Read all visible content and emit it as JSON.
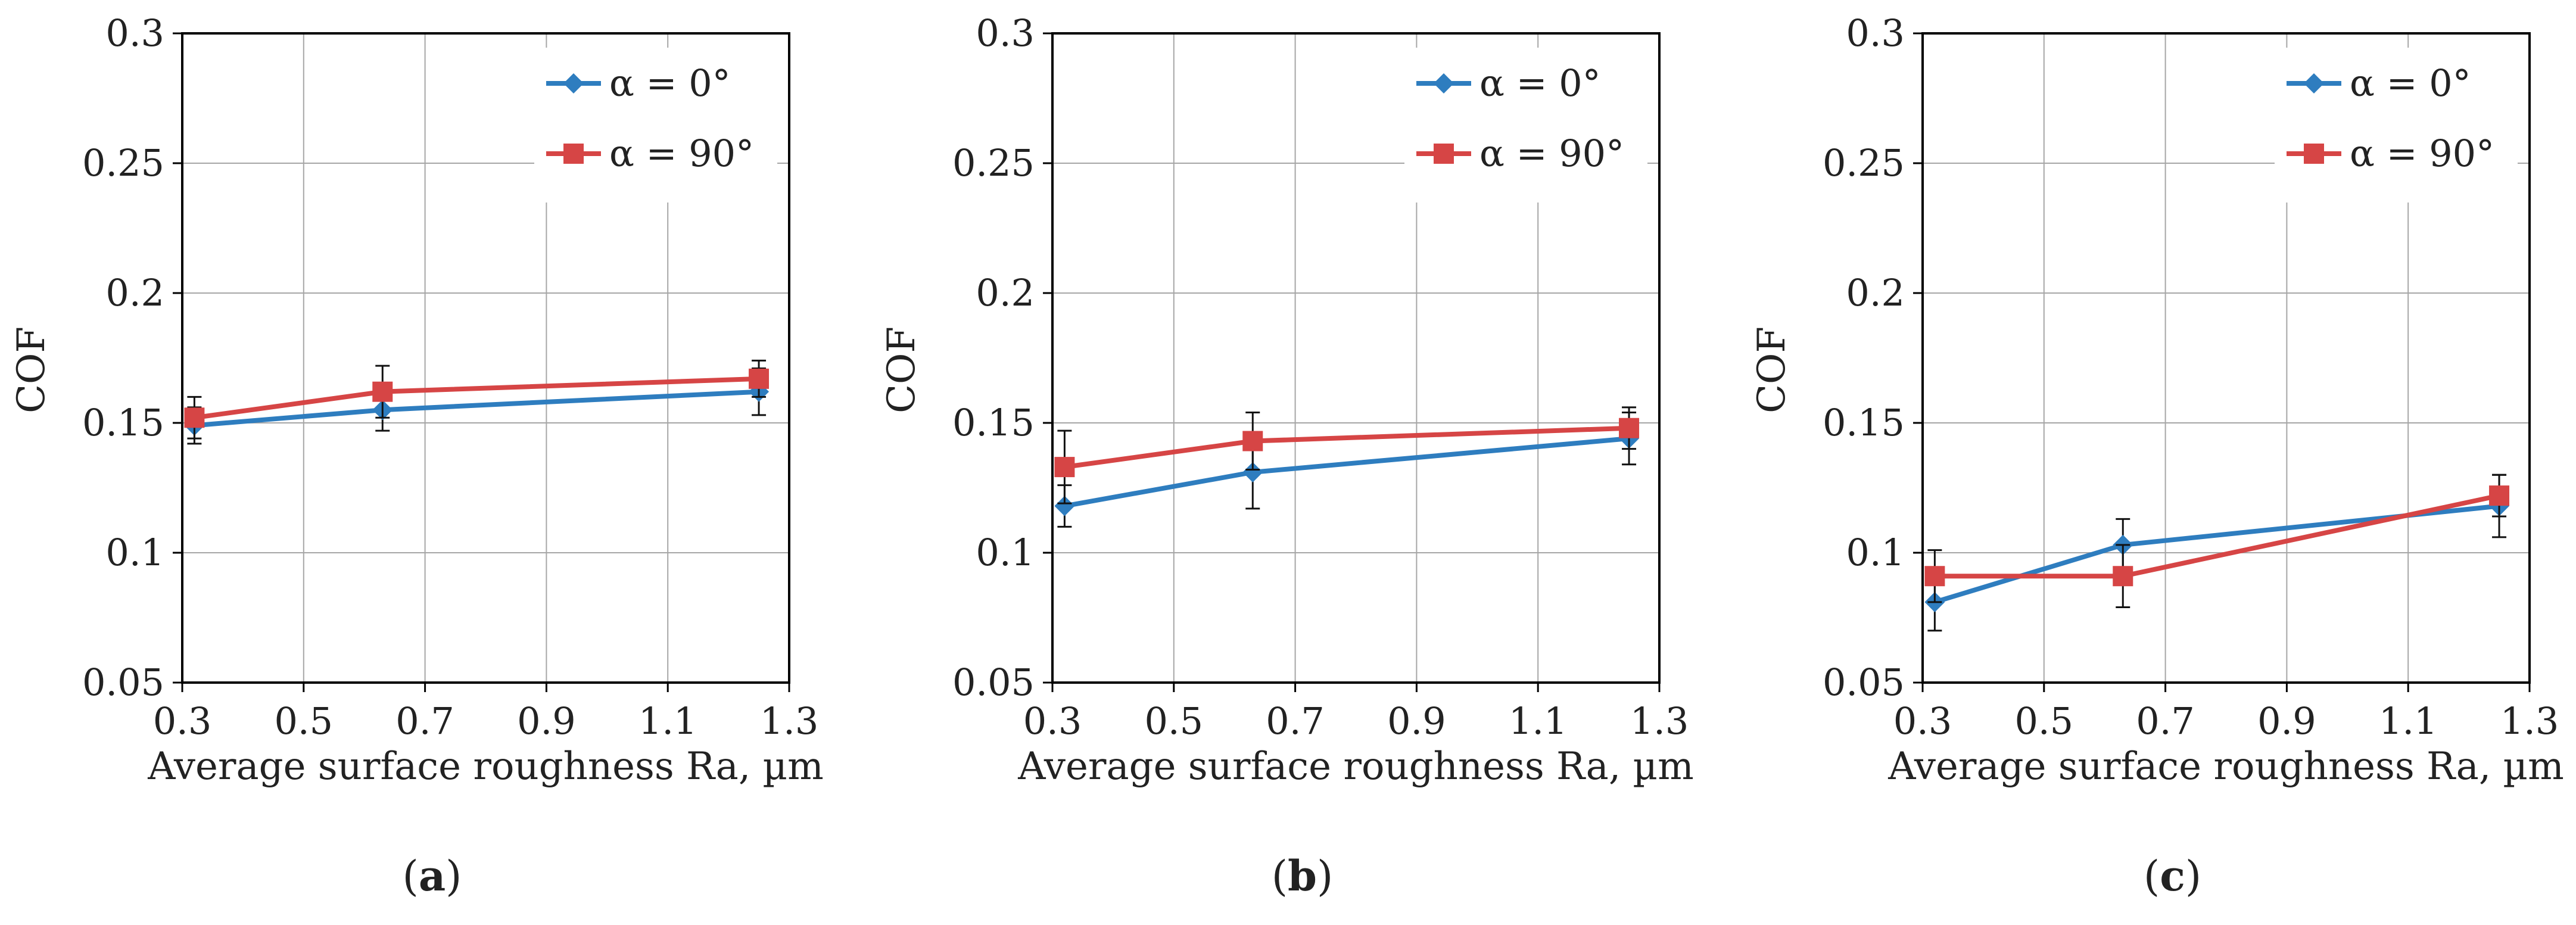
{
  "figure": {
    "panels": [
      "a",
      "b",
      "c"
    ]
  },
  "colors": {
    "series_alpha0": "#2e7dbf",
    "series_alpha90": "#d64545",
    "grid": "#a6a6a6",
    "axis": "#000000"
  },
  "chart_data": [
    {
      "type": "line",
      "panel_label": "a",
      "xlabel": "Average surface roughness Ra, µm",
      "ylabel": "COF",
      "xlim": [
        0.3,
        1.3
      ],
      "ylim": [
        0.05,
        0.3
      ],
      "xticks": [
        "0.3",
        "0.5",
        "0.7",
        "0.9",
        "1.1",
        "1.3"
      ],
      "yticks": [
        "0.05",
        "0.1",
        "0.15",
        "0.2",
        "0.25",
        "0.3"
      ],
      "grid": true,
      "legend_position": "top-right",
      "series": [
        {
          "name": "α = 0°",
          "marker": "diamond",
          "x": [
            0.32,
            0.63,
            1.25
          ],
          "y": [
            0.149,
            0.155,
            0.162
          ],
          "err": [
            0.007,
            0.008,
            0.009
          ]
        },
        {
          "name": "α = 90°",
          "marker": "square",
          "x": [
            0.32,
            0.63,
            1.25
          ],
          "y": [
            0.152,
            0.162,
            0.167
          ],
          "err": [
            0.008,
            0.01,
            0.007
          ]
        }
      ]
    },
    {
      "type": "line",
      "panel_label": "b",
      "xlabel": "Average surface roughness Ra, µm",
      "ylabel": "COF",
      "xlim": [
        0.3,
        1.3
      ],
      "ylim": [
        0.05,
        0.3
      ],
      "xticks": [
        "0.3",
        "0.5",
        "0.7",
        "0.9",
        "1.1",
        "1.3"
      ],
      "yticks": [
        "0.05",
        "0.1",
        "0.15",
        "0.2",
        "0.25",
        "0.3"
      ],
      "grid": true,
      "legend_position": "top-right",
      "series": [
        {
          "name": "α = 0°",
          "marker": "diamond",
          "x": [
            0.32,
            0.63,
            1.25
          ],
          "y": [
            0.118,
            0.131,
            0.144
          ],
          "err": [
            0.008,
            0.014,
            0.01
          ]
        },
        {
          "name": "α = 90°",
          "marker": "square",
          "x": [
            0.32,
            0.63,
            1.25
          ],
          "y": [
            0.133,
            0.143,
            0.148
          ],
          "err": [
            0.014,
            0.011,
            0.008
          ]
        }
      ]
    },
    {
      "type": "line",
      "panel_label": "c",
      "xlabel": "Average surface roughness Ra, µm",
      "ylabel": "COF",
      "xlim": [
        0.3,
        1.3
      ],
      "ylim": [
        0.05,
        0.3
      ],
      "xticks": [
        "0.3",
        "0.5",
        "0.7",
        "0.9",
        "1.1",
        "1.3"
      ],
      "yticks": [
        "0.05",
        "0.1",
        "0.15",
        "0.2",
        "0.25",
        "0.3"
      ],
      "grid": true,
      "legend_position": "top-right",
      "series": [
        {
          "name": "α = 0°",
          "marker": "diamond",
          "x": [
            0.32,
            0.63,
            1.25
          ],
          "y": [
            0.081,
            0.103,
            0.118
          ],
          "err": [
            0.011,
            0.01,
            0.012
          ]
        },
        {
          "name": "α = 90°",
          "marker": "square",
          "x": [
            0.32,
            0.63,
            1.25
          ],
          "y": [
            0.091,
            0.091,
            0.122
          ],
          "err": [
            0.01,
            0.012,
            0.008
          ]
        }
      ]
    }
  ]
}
